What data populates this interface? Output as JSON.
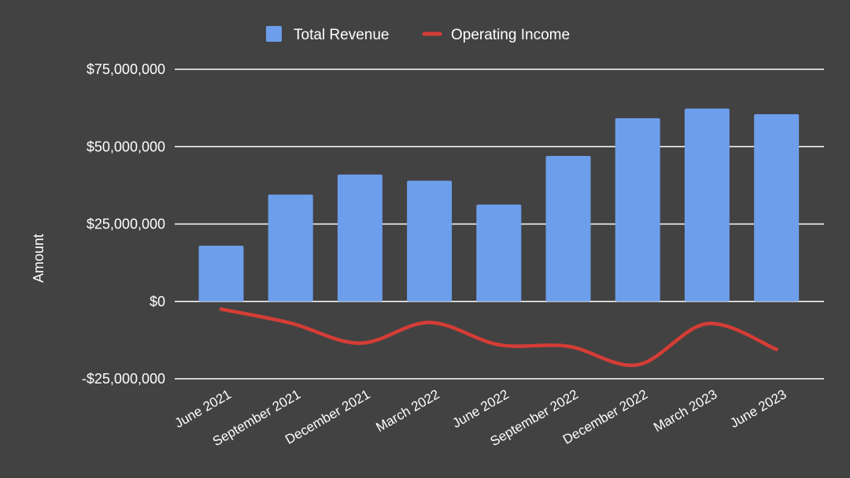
{
  "chart_data": {
    "type": "bar",
    "title": "",
    "xlabel": "",
    "ylabel": "Amount",
    "ylim": [
      -25000000,
      75000000
    ],
    "yticks": [
      75000000,
      50000000,
      25000000,
      0,
      -25000000
    ],
    "ytick_labels": [
      "$75,000,000",
      "$50,000,000",
      "$25,000,000",
      "$0",
      "-$25,000,000"
    ],
    "categories": [
      "June 2021",
      "September 2021",
      "December 2021",
      "March 2022",
      "June 2022",
      "September 2022",
      "December 2022",
      "March 2023",
      "June 2023"
    ],
    "series": [
      {
        "name": "Total Revenue",
        "kind": "bar",
        "color": "#6d9eeb",
        "values": [
          18000000,
          34500000,
          41000000,
          39000000,
          31300000,
          47000000,
          59200000,
          62300000,
          60500000
        ]
      },
      {
        "name": "Operating Income",
        "kind": "line",
        "color": "#d43d36",
        "values": [
          -2500000,
          -7000000,
          -13500000,
          -6800000,
          -14000000,
          -14500000,
          -20500000,
          -7200000,
          -15500000
        ]
      }
    ],
    "legend": {
      "position": "top-center",
      "entries": [
        "Total Revenue",
        "Operating Income"
      ]
    },
    "grid": true
  }
}
